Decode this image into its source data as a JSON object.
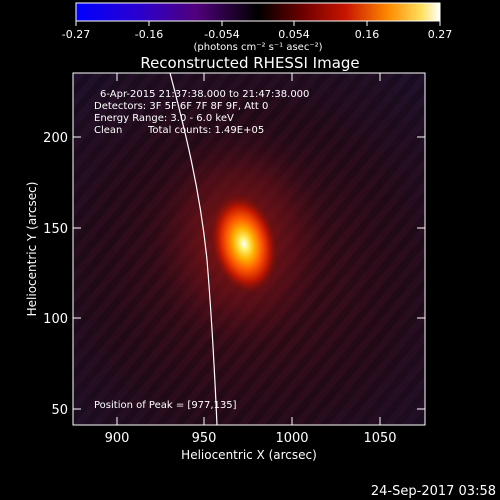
{
  "colorbar": {
    "ticks": [
      "-0.27",
      "-0.16",
      "-0.054",
      "0.054",
      "0.16",
      "0.27"
    ],
    "units_label": "(photons cm⁻² s⁻¹ asec⁻²)"
  },
  "plot": {
    "title": "Reconstructed RHESSI Image",
    "xlabel": "Heliocentric X (arcsec)",
    "ylabel": "Heliocentric Y (arcsec)",
    "xticks": [
      "900",
      "950",
      "1000",
      "1050"
    ],
    "yticks": [
      "50",
      "100",
      "150",
      "200"
    ],
    "info": {
      "time_range": "6-Apr-2015 21:37:38.000 to 21:47:38.000",
      "detectors": "Detectors: 3F 5F 6F 7F 8F 9F, Att 0",
      "energy": "Energy Range: 3.0 - 6.0 keV",
      "clean": "Clean",
      "total_counts": "Total counts: 1.49E+05"
    },
    "peak_text": "Position of Peak = [977,135]"
  },
  "footer": {
    "timestamp": "24-Sep-2017 03:58"
  }
}
